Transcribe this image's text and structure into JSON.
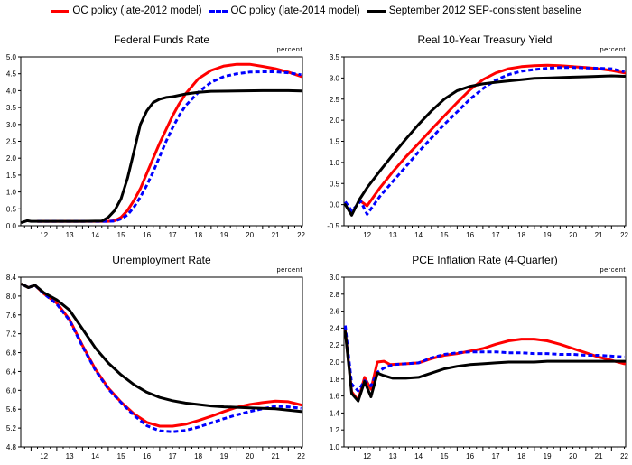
{
  "legend": [
    {
      "label": "OC policy (late-2012 model)",
      "color": "#ff0000",
      "style": "solid"
    },
    {
      "label": "OC policy (late-2014 model)",
      "color": "#0000ff",
      "style": "dashed"
    },
    {
      "label": "September 2012 SEP-consistent baseline",
      "color": "#000000",
      "style": "solid"
    }
  ],
  "chart_data": [
    {
      "type": "line",
      "title": "Federal Funds Rate",
      "unit_label": "percent",
      "xlim": [
        2011.6,
        2022.55
      ],
      "ylim": [
        0.0,
        5.0
      ],
      "yticks": [
        0.0,
        0.5,
        1.0,
        1.5,
        2.0,
        2.5,
        3.0,
        3.5,
        4.0,
        4.5,
        5.0
      ],
      "ytick_labels": [
        "0.0",
        "0.5",
        "1.0",
        "1.5",
        "2.0",
        "2.5",
        "3.0",
        "3.5",
        "4.0",
        "4.5",
        "5.0"
      ],
      "xtick_labels": [
        "12",
        "13",
        "14",
        "15",
        "16",
        "17",
        "18",
        "19",
        "20",
        "21",
        "22"
      ],
      "series": [
        {
          "name": "OC policy (late-2012 model)",
          "color": "#ff0000",
          "dash": false,
          "x": [
            2012.25,
            2013,
            2014,
            2015,
            2015.25,
            2015.5,
            2015.75,
            2016,
            2016.25,
            2016.5,
            2016.75,
            2017,
            2017.25,
            2017.5,
            2017.75,
            2018,
            2018.5,
            2019,
            2019.5,
            2020,
            2020.5,
            2021,
            2021.5,
            2022,
            2022.5
          ],
          "y": [
            0.13,
            0.13,
            0.13,
            0.13,
            0.15,
            0.25,
            0.45,
            0.75,
            1.1,
            1.55,
            2.0,
            2.45,
            2.85,
            3.25,
            3.6,
            3.9,
            4.35,
            4.6,
            4.73,
            4.78,
            4.78,
            4.72,
            4.65,
            4.55,
            4.42
          ]
        },
        {
          "name": "OC policy (late-2014 model)",
          "color": "#0000ff",
          "dash": true,
          "x": [
            2012.25,
            2013,
            2014,
            2015,
            2015.25,
            2015.5,
            2015.75,
            2016,
            2016.25,
            2016.5,
            2016.75,
            2017,
            2017.25,
            2017.5,
            2017.75,
            2018,
            2018.5,
            2019,
            2019.5,
            2020,
            2020.5,
            2021,
            2021.5,
            2022,
            2022.5
          ],
          "y": [
            0.13,
            0.13,
            0.13,
            0.13,
            0.14,
            0.2,
            0.32,
            0.55,
            0.85,
            1.2,
            1.6,
            2.05,
            2.5,
            2.9,
            3.25,
            3.55,
            3.95,
            4.25,
            4.42,
            4.5,
            4.55,
            4.56,
            4.56,
            4.53,
            4.47
          ]
        },
        {
          "name": "September 2012 SEP-consistent baseline",
          "color": "#000000",
          "dash": false,
          "x": [
            2011.65,
            2011.85,
            2012.0,
            2012.25,
            2013,
            2014,
            2014.75,
            2015,
            2015.25,
            2015.5,
            2015.75,
            2016,
            2016.25,
            2016.5,
            2016.75,
            2017,
            2017.25,
            2017.5,
            2018,
            2018.5,
            2019,
            2020,
            2021,
            2022,
            2022.5
          ],
          "y": [
            0.1,
            0.15,
            0.13,
            0.13,
            0.13,
            0.13,
            0.14,
            0.25,
            0.45,
            0.8,
            1.4,
            2.2,
            3.0,
            3.4,
            3.65,
            3.75,
            3.8,
            3.82,
            3.9,
            3.95,
            3.98,
            3.99,
            4.0,
            4.0,
            3.99
          ]
        }
      ]
    },
    {
      "type": "line",
      "title": "Real 10-Year Treasury Yield",
      "unit_label": "percent",
      "xlim": [
        2011.6,
        2022.55
      ],
      "ylim": [
        -0.5,
        3.5
      ],
      "yticks": [
        -0.5,
        0.0,
        0.5,
        1.0,
        1.5,
        2.0,
        2.5,
        3.0,
        3.5
      ],
      "ytick_labels": [
        "-0.5",
        "0.0",
        "0.5",
        "1.0",
        "1.5",
        "2.0",
        "2.5",
        "3.0",
        "3.5"
      ],
      "xtick_labels": [
        "12",
        "13",
        "14",
        "15",
        "16",
        "17",
        "18",
        "19",
        "20",
        "21",
        "22"
      ],
      "series": [
        {
          "name": "OC policy (late-2012 model)",
          "color": "#ff0000",
          "dash": false,
          "x": [
            2012.25,
            2012.5,
            2013,
            2013.5,
            2014,
            2014.5,
            2015,
            2015.5,
            2016,
            2016.5,
            2017,
            2017.5,
            2018,
            2018.5,
            2019,
            2019.5,
            2020,
            2020.5,
            2021,
            2021.5,
            2022,
            2022.5
          ],
          "y": [
            0.08,
            -0.03,
            0.4,
            0.78,
            1.13,
            1.45,
            1.78,
            2.1,
            2.42,
            2.72,
            2.96,
            3.12,
            3.22,
            3.27,
            3.29,
            3.3,
            3.29,
            3.27,
            3.25,
            3.22,
            3.18,
            3.12
          ]
        },
        {
          "name": "OC policy (late-2014 model)",
          "color": "#0000ff",
          "dash": true,
          "x": [
            2011.65,
            2011.9,
            2012.25,
            2012.5,
            2013,
            2013.5,
            2014,
            2014.5,
            2015,
            2015.5,
            2016,
            2016.5,
            2017,
            2017.5,
            2018,
            2018.5,
            2019,
            2019.5,
            2020,
            2020.5,
            2021,
            2021.5,
            2022,
            2022.5
          ],
          "y": [
            0.07,
            -0.15,
            0.08,
            -0.23,
            0.2,
            0.55,
            0.9,
            1.25,
            1.58,
            1.9,
            2.2,
            2.5,
            2.75,
            2.95,
            3.08,
            3.16,
            3.2,
            3.23,
            3.25,
            3.25,
            3.24,
            3.23,
            3.22,
            3.15
          ]
        },
        {
          "name": "September 2012 SEP-consistent baseline",
          "color": "#000000",
          "dash": false,
          "x": [
            2011.65,
            2011.9,
            2012.2,
            2012.5,
            2013,
            2013.5,
            2014,
            2014.5,
            2015,
            2015.5,
            2016,
            2016.5,
            2017,
            2017.5,
            2018,
            2018.5,
            2019,
            2019.5,
            2020,
            2020.5,
            2021,
            2021.5,
            2022,
            2022.5
          ],
          "y": [
            0.0,
            -0.25,
            0.12,
            0.4,
            0.8,
            1.18,
            1.55,
            1.9,
            2.22,
            2.5,
            2.7,
            2.8,
            2.86,
            2.9,
            2.93,
            2.96,
            2.99,
            3.0,
            3.01,
            3.02,
            3.03,
            3.04,
            3.05,
            3.04
          ]
        }
      ]
    },
    {
      "type": "line",
      "title": "Unemployment Rate",
      "unit_label": "percent",
      "xlim": [
        2011.6,
        2022.55
      ],
      "ylim": [
        4.8,
        8.4
      ],
      "yticks": [
        4.8,
        5.2,
        5.6,
        6.0,
        6.4,
        6.8,
        7.2,
        7.6,
        8.0,
        8.4
      ],
      "ytick_labels": [
        "4.8",
        "5.2",
        "5.6",
        "6.0",
        "6.4",
        "6.8",
        "7.2",
        "7.6",
        "8.0",
        "8.4"
      ],
      "xtick_labels": [
        "12",
        "13",
        "14",
        "15",
        "16",
        "17",
        "18",
        "19",
        "20",
        "21",
        "22"
      ],
      "series": [
        {
          "name": "OC policy (late-2012 model)",
          "color": "#ff0000",
          "dash": false,
          "x": [
            2011.65,
            2011.9,
            2012.15,
            2012.5,
            2013,
            2013.5,
            2014,
            2014.5,
            2015,
            2015.5,
            2016,
            2016.5,
            2017,
            2017.5,
            2018,
            2018.5,
            2019,
            2019.5,
            2020,
            2020.5,
            2021,
            2021.5,
            2022,
            2022.5
          ],
          "y": [
            8.25,
            8.18,
            8.23,
            8.05,
            7.85,
            7.5,
            6.95,
            6.45,
            6.05,
            5.75,
            5.5,
            5.32,
            5.24,
            5.24,
            5.28,
            5.36,
            5.45,
            5.55,
            5.64,
            5.7,
            5.74,
            5.77,
            5.76,
            5.69
          ]
        },
        {
          "name": "OC policy (late-2014 model)",
          "color": "#0000ff",
          "dash": true,
          "x": [
            2011.65,
            2011.9,
            2012.15,
            2012.5,
            2013,
            2013.5,
            2014,
            2014.5,
            2015,
            2015.5,
            2016,
            2016.5,
            2017,
            2017.5,
            2018,
            2018.5,
            2019,
            2019.5,
            2020,
            2020.5,
            2021,
            2021.5,
            2022,
            2022.5
          ],
          "y": [
            8.25,
            8.18,
            8.23,
            8.05,
            7.83,
            7.48,
            6.93,
            6.43,
            6.03,
            5.74,
            5.47,
            5.25,
            5.14,
            5.12,
            5.15,
            5.22,
            5.31,
            5.4,
            5.48,
            5.55,
            5.61,
            5.66,
            5.65,
            5.62
          ]
        },
        {
          "name": "September 2012 SEP-consistent baseline",
          "color": "#000000",
          "dash": false,
          "x": [
            2011.65,
            2011.9,
            2012.15,
            2012.5,
            2013,
            2013.5,
            2014,
            2014.5,
            2015,
            2015.5,
            2016,
            2016.5,
            2017,
            2017.5,
            2018,
            2018.5,
            2019,
            2019.5,
            2020,
            2020.5,
            2021,
            2021.5,
            2022,
            2022.5
          ],
          "y": [
            8.25,
            8.18,
            8.23,
            8.07,
            7.92,
            7.7,
            7.3,
            6.9,
            6.58,
            6.33,
            6.12,
            5.96,
            5.85,
            5.78,
            5.73,
            5.7,
            5.67,
            5.65,
            5.64,
            5.63,
            5.62,
            5.61,
            5.58,
            5.55
          ]
        }
      ]
    },
    {
      "type": "line",
      "title": "PCE Inflation Rate (4-Quarter)",
      "unit_label": "percent",
      "xlim": [
        2011.6,
        2022.55
      ],
      "ylim": [
        1.0,
        3.0
      ],
      "yticks": [
        1.0,
        1.2,
        1.4,
        1.6,
        1.8,
        2.0,
        2.2,
        2.4,
        2.6,
        2.8,
        3.0
      ],
      "ytick_labels": [
        "1.0",
        "1.2",
        "1.4",
        "1.6",
        "1.8",
        "2.0",
        "2.2",
        "2.4",
        "2.6",
        "2.8",
        "3.0"
      ],
      "xtick_labels": [
        "12",
        "13",
        "14",
        "15",
        "16",
        "17",
        "18",
        "19",
        "20",
        "21",
        "22"
      ],
      "series": [
        {
          "name": "OC policy (late-2012 model)",
          "color": "#ff0000",
          "dash": false,
          "x": [
            2011.65,
            2011.9,
            2012.15,
            2012.4,
            2012.65,
            2012.9,
            2013.15,
            2013.4,
            2014,
            2014.5,
            2015,
            2015.5,
            2016,
            2016.5,
            2017,
            2017.5,
            2018,
            2018.5,
            2019,
            2019.5,
            2020,
            2020.5,
            2021,
            2021.5,
            2022,
            2022.5
          ],
          "y": [
            2.37,
            1.65,
            1.55,
            1.82,
            1.68,
            2.0,
            2.01,
            1.97,
            1.98,
            1.99,
            2.04,
            2.08,
            2.1,
            2.13,
            2.16,
            2.21,
            2.25,
            2.27,
            2.27,
            2.25,
            2.21,
            2.16,
            2.11,
            2.06,
            2.02,
            1.98
          ]
        },
        {
          "name": "OC policy (late-2014 model)",
          "color": "#0000ff",
          "dash": true,
          "x": [
            2011.65,
            2011.9,
            2012.15,
            2012.4,
            2012.65,
            2012.9,
            2013.15,
            2013.5,
            2014,
            2014.5,
            2015,
            2015.5,
            2016,
            2016.5,
            2017,
            2017.5,
            2018,
            2018.5,
            2019,
            2019.5,
            2020,
            2020.5,
            2021,
            2021.5,
            2022,
            2022.5
          ],
          "y": [
            2.43,
            1.74,
            1.66,
            1.78,
            1.72,
            1.88,
            1.93,
            1.97,
            1.98,
            1.99,
            2.05,
            2.09,
            2.11,
            2.12,
            2.12,
            2.12,
            2.11,
            2.11,
            2.1,
            2.1,
            2.09,
            2.09,
            2.08,
            2.08,
            2.07,
            2.06
          ]
        },
        {
          "name": "September 2012 SEP-consistent baseline",
          "color": "#000000",
          "dash": false,
          "x": [
            2011.65,
            2011.9,
            2012.15,
            2012.4,
            2012.65,
            2012.9,
            2013.15,
            2013.5,
            2014,
            2014.5,
            2015,
            2015.5,
            2016,
            2016.5,
            2017,
            2017.5,
            2018,
            2018.5,
            2019,
            2019.5,
            2020,
            2020.5,
            2021,
            2021.5,
            2022,
            2022.5
          ],
          "y": [
            2.36,
            1.63,
            1.54,
            1.77,
            1.59,
            1.87,
            1.84,
            1.81,
            1.81,
            1.82,
            1.87,
            1.92,
            1.95,
            1.97,
            1.98,
            1.99,
            2.0,
            2.0,
            2.0,
            2.01,
            2.01,
            2.01,
            2.01,
            2.01,
            2.01,
            2.01
          ]
        }
      ]
    }
  ]
}
